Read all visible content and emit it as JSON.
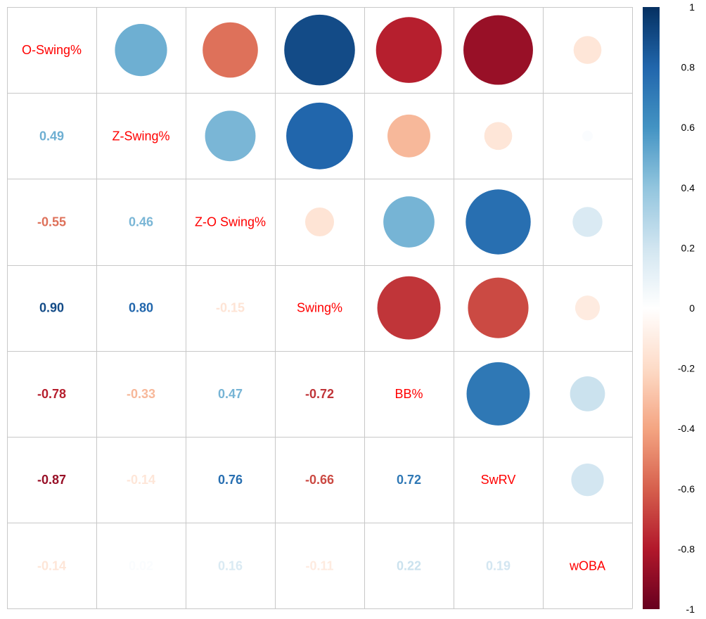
{
  "chart_data": {
    "type": "correlogram",
    "variables": [
      "O-Swing%",
      "Z-Swing%",
      "Z-O Swing%",
      "Swing%",
      "BB%",
      "SwRV",
      "wOBA"
    ],
    "matrix": [
      [
        1.0,
        0.49,
        -0.55,
        0.9,
        -0.78,
        -0.87,
        -0.14
      ],
      [
        0.49,
        1.0,
        0.46,
        0.8,
        -0.33,
        -0.14,
        0.02
      ],
      [
        -0.55,
        0.46,
        1.0,
        -0.15,
        0.47,
        0.76,
        0.16
      ],
      [
        0.9,
        0.8,
        -0.15,
        1.0,
        -0.72,
        -0.66,
        -0.11
      ],
      [
        -0.78,
        -0.33,
        0.47,
        -0.72,
        1.0,
        0.72,
        0.22
      ],
      [
        -0.87,
        -0.14,
        0.76,
        -0.66,
        0.72,
        1.0,
        0.19
      ],
      [
        -0.14,
        0.02,
        0.16,
        -0.11,
        0.22,
        0.19,
        1.0
      ]
    ],
    "lower_triangle_labels": [
      [
        "0.49"
      ],
      [
        "-0.55",
        "0.46"
      ],
      [
        "0.90",
        "0.80",
        "-0.15"
      ],
      [
        "-0.78",
        "-0.33",
        "0.47",
        "-0.72"
      ],
      [
        "-0.87",
        "-0.14",
        "0.76",
        "-0.66",
        "0.72"
      ],
      [
        "-0.14",
        "0.02",
        "0.16",
        "-0.11",
        "0.22",
        "0.19"
      ]
    ],
    "upper_triangle": "circle",
    "lower_triangle": "number",
    "diagonal": "variable name",
    "colorbar": {
      "ticks": [
        "1",
        "0.8",
        "0.6",
        "0.4",
        "0.2",
        "0",
        "-0.2",
        "-0.4",
        "-0.6",
        "-0.8",
        "-1"
      ],
      "range": [
        -1,
        1
      ],
      "placement": "right"
    },
    "colors": {
      "palette": [
        "#67001F",
        "#B2182B",
        "#D6604D",
        "#F4A582",
        "#FDDBC7",
        "#FFFFFF",
        "#D1E5F0",
        "#92C5DE",
        "#4393C3",
        "#2166AC",
        "#053061"
      ],
      "variable_label": "#FF0000",
      "grid": "#C8C8C8"
    }
  }
}
